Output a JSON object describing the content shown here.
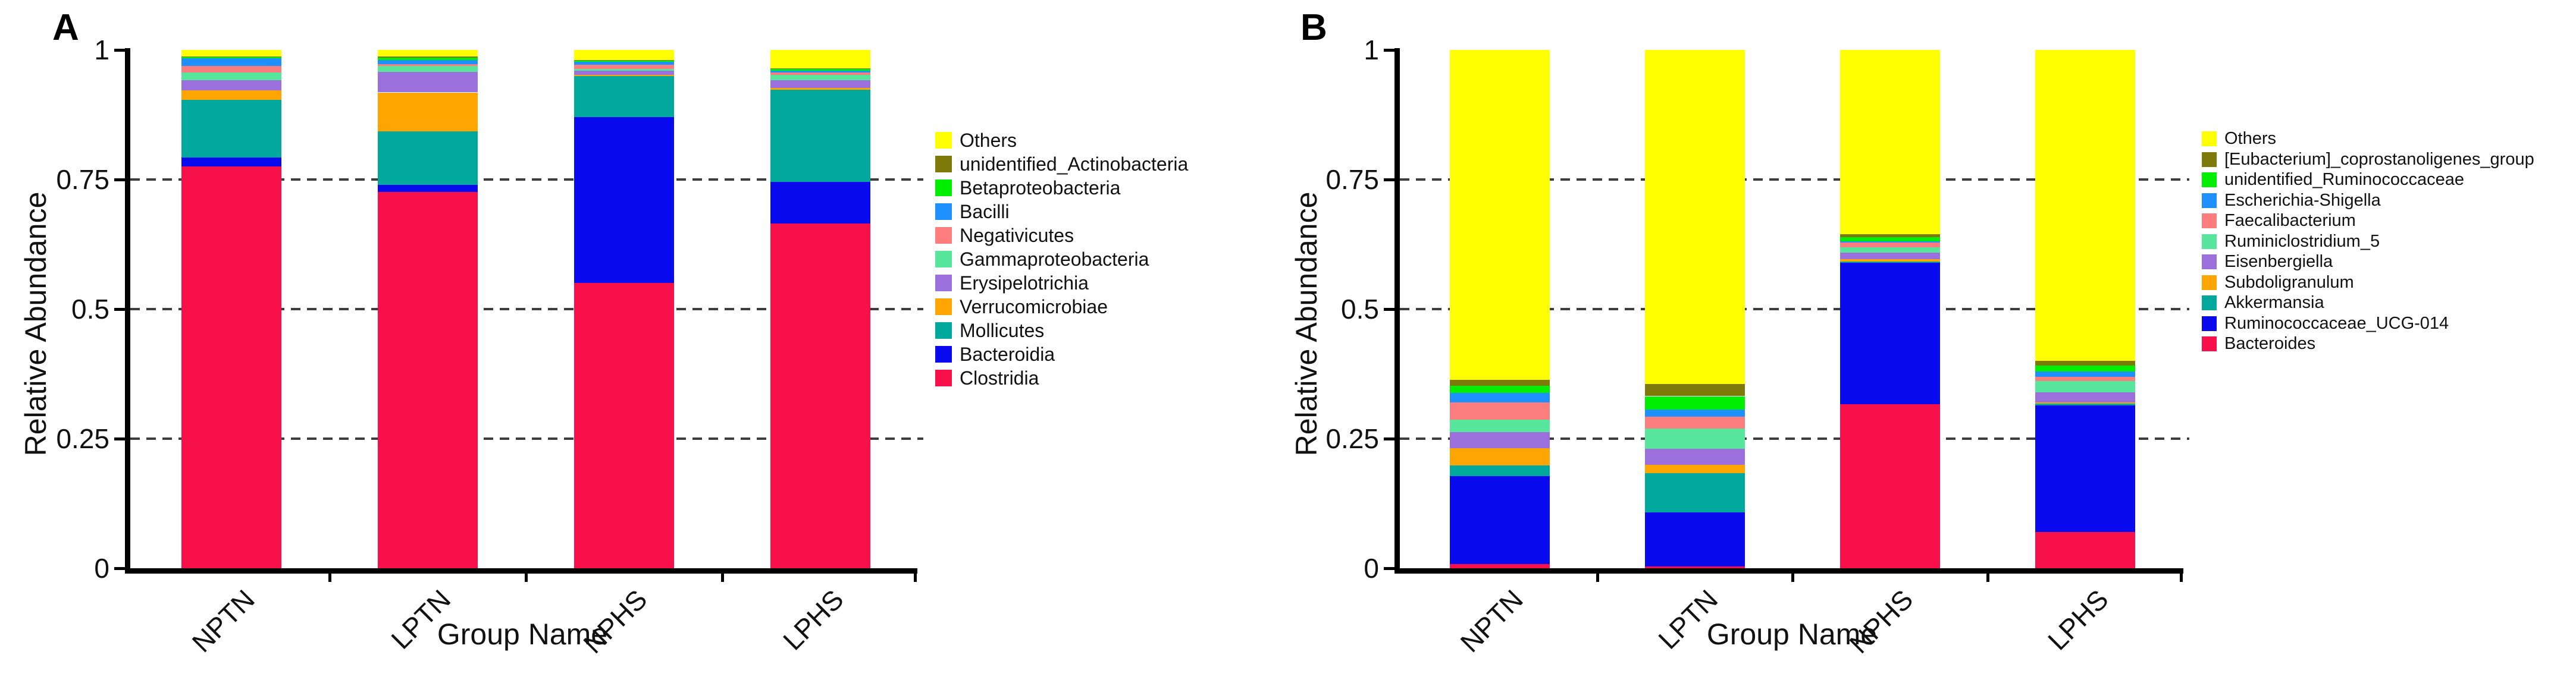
{
  "figure_title": "",
  "chart_data": [
    {
      "type": "bar",
      "stacked": true,
      "panel_label": "A",
      "xlabel": "Group Name",
      "ylabel": "Relative Abundance",
      "ylim": [
        0,
        1
      ],
      "y_tick_values": [
        1,
        0.75,
        0.5,
        0.25,
        0
      ],
      "y_tick_labels": [
        "1",
        "0.75",
        "0.5",
        "0.25",
        "0"
      ],
      "grid": "dashed horizontal lines at 0.25, 0.5, 0.75",
      "legend_position": "right",
      "categories": [
        "NPTN",
        "LPTN",
        "NPHS",
        "LPHS"
      ],
      "series": [
        {
          "name": "Clostridia",
          "color": "#F8104A",
          "values": [
            0.775,
            0.726,
            0.55,
            0.665
          ]
        },
        {
          "name": "Bacteroidia",
          "color": "#0A0AEF",
          "values": [
            0.017,
            0.014,
            0.32,
            0.08
          ]
        },
        {
          "name": "Mollicutes",
          "color": "#00A99C",
          "values": [
            0.112,
            0.103,
            0.08,
            0.178
          ]
        },
        {
          "name": "Verrucomicrobiae",
          "color": "#FFA502",
          "values": [
            0.018,
            0.075,
            0.002,
            0.004
          ]
        },
        {
          "name": "Erysipelotrichia",
          "color": "#9B70DC",
          "values": [
            0.02,
            0.04,
            0.008,
            0.015
          ]
        },
        {
          "name": "Gammaproteobacteria",
          "color": "#57E69B",
          "values": [
            0.014,
            0.011,
            0.003,
            0.01
          ]
        },
        {
          "name": "Negativicutes",
          "color": "#FB7D7D",
          "values": [
            0.013,
            0.004,
            0.008,
            0.004
          ]
        },
        {
          "name": "Bacilli",
          "color": "#1E90FF",
          "values": [
            0.015,
            0.008,
            0.006,
            0.004
          ]
        },
        {
          "name": "Betaproteobacteria",
          "color": "#00EE00",
          "values": [
            0.002,
            0.004,
            0.002,
            0.003
          ]
        },
        {
          "name": "unidentified_Actinobacteria",
          "color": "#7D7A0A",
          "values": [
            0.001,
            0.002,
            0.001,
            0.001
          ]
        },
        {
          "name": "Others",
          "color": "#FFFF00",
          "values": [
            0.013,
            0.013,
            0.02,
            0.036
          ]
        }
      ],
      "legend_order_top_to_bottom": [
        "Others",
        "unidentified_Actinobacteria",
        "Betaproteobacteria",
        "Bacilli",
        "Negativicutes",
        "Gammaproteobacteria",
        "Erysipelotrichia",
        "Verrucomicrobiae",
        "Mollicutes",
        "Bacteroidia",
        "Clostridia"
      ]
    },
    {
      "type": "bar",
      "stacked": true,
      "panel_label": "B",
      "xlabel": "Group Name",
      "ylabel": "Relative Abundance",
      "ylim": [
        0,
        1
      ],
      "y_tick_values": [
        1,
        0.75,
        0.5,
        0.25,
        0
      ],
      "y_tick_labels": [
        "1",
        "0.75",
        "0.5",
        "0.25",
        "0"
      ],
      "grid": "dashed horizontal lines at 0.25, 0.5, 0.75",
      "legend_position": "right",
      "categories": [
        "NPTN",
        "LPTN",
        "NPHS",
        "LPHS"
      ],
      "series": [
        {
          "name": "Bacteroides",
          "color": "#F8104A",
          "values": [
            0.008,
            0.004,
            0.317,
            0.07
          ]
        },
        {
          "name": "Ruminococcaceae_UCG-014",
          "color": "#0A0AEF",
          "values": [
            0.17,
            0.104,
            0.272,
            0.244
          ]
        },
        {
          "name": "Akkermansia",
          "color": "#00A99C",
          "values": [
            0.02,
            0.075,
            0.003,
            0.004
          ]
        },
        {
          "name": "Subdoligranulum",
          "color": "#FFA502",
          "values": [
            0.034,
            0.017,
            0.004,
            0.002
          ]
        },
        {
          "name": "Eisenbergiella",
          "color": "#9B70DC",
          "values": [
            0.031,
            0.031,
            0.013,
            0.019
          ]
        },
        {
          "name": "Ruminiclostridium_5",
          "color": "#57E69B",
          "values": [
            0.024,
            0.038,
            0.01,
            0.022
          ]
        },
        {
          "name": "Faecalibacterium",
          "color": "#FB7D7D",
          "values": [
            0.033,
            0.023,
            0.01,
            0.008
          ]
        },
        {
          "name": "Escherichia-Shigella",
          "color": "#1E90FF",
          "values": [
            0.018,
            0.014,
            0.002,
            0.011
          ]
        },
        {
          "name": "unidentified_Ruminococcaceae",
          "color": "#00EE00",
          "values": [
            0.014,
            0.026,
            0.008,
            0.011
          ]
        },
        {
          "name": "[Eubacterium]_coprostanoligenes_group",
          "color": "#7D7A0A",
          "values": [
            0.011,
            0.023,
            0.006,
            0.009
          ]
        },
        {
          "name": "Others",
          "color": "#FFFF00",
          "values": [
            0.637,
            0.645,
            0.355,
            0.6
          ]
        }
      ],
      "legend_order_top_to_bottom": [
        "Others",
        "[Eubacterium]_coprostanoligenes_group",
        "unidentified_Ruminococcaceae",
        "Escherichia-Shigella",
        "Faecalibacterium",
        "Ruminiclostridium_5",
        "Eisenbergiella",
        "Subdoligranulum",
        "Akkermansia",
        "Ruminococcaceae_UCG-014",
        "Bacteroides"
      ]
    }
  ]
}
